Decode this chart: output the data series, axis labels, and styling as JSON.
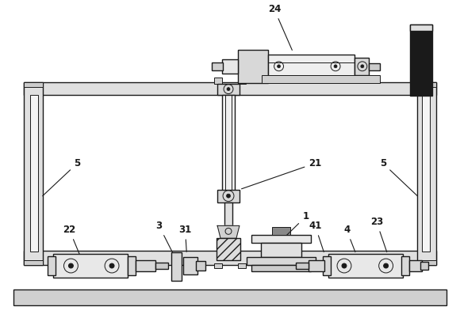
{
  "bg_color": "#ffffff",
  "lc": "#1a1a1a",
  "figsize": [
    5.8,
    3.97
  ],
  "dpi": 100
}
